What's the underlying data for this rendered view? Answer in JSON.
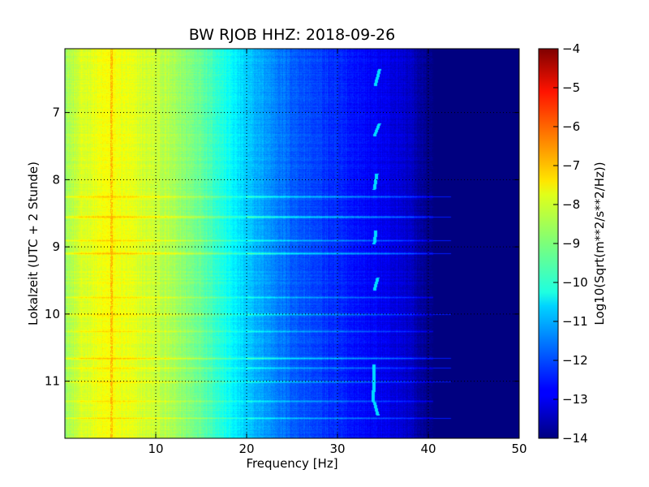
{
  "chart_data": {
    "type": "heatmap",
    "title": "BW RJOB HHZ: 2018-09-26",
    "xlabel": "Frequency [Hz]",
    "ylabel": "Lokalzeit (UTC + 2 Stunde)",
    "xlim": [
      0,
      50
    ],
    "ylim": [
      11.85,
      6.05
    ],
    "x_ticks": [
      "10",
      "20",
      "30",
      "40",
      "50"
    ],
    "x_tick_values": [
      10,
      20,
      30,
      40,
      50
    ],
    "y_ticks": [
      "7",
      "8",
      "9",
      "10",
      "11"
    ],
    "y_tick_values": [
      7,
      8,
      9,
      10,
      11
    ],
    "grid": true,
    "colormap": "jet",
    "colorbar": {
      "label": "Log10(Sqrt(m**2/s**2/Hz))",
      "range": [
        -14,
        -4
      ],
      "ticks": [
        "−4",
        "−5",
        "−6",
        "−7",
        "−8",
        "−9",
        "−10",
        "−11",
        "−12",
        "−13",
        "−14"
      ],
      "tick_values": [
        -4,
        -5,
        -6,
        -7,
        -8,
        -9,
        -10,
        -11,
        -12,
        -13,
        -14
      ]
    },
    "spectral_profile": {
      "frequency_hz": [
        0,
        2,
        5,
        10,
        15,
        20,
        25,
        30,
        35,
        38,
        40,
        42,
        50
      ],
      "level": [
        -8.7,
        -8.1,
        -7.8,
        -8.3,
        -9.2,
        -10.8,
        -11.8,
        -12.4,
        -12.9,
        -13.3,
        -14,
        -14,
        -14
      ]
    },
    "features": {
      "line_5hz": {
        "frequency_hz": 5.1,
        "level": -7.0
      },
      "line_34hz_segments": [
        {
          "t_start": 6.35,
          "t_end": 6.6,
          "f_start": 34.6,
          "f_end": 34.1
        },
        {
          "t_start": 7.15,
          "t_end": 7.35,
          "f_start": 34.6,
          "f_end": 34.0
        },
        {
          "t_start": 7.9,
          "t_end": 8.15,
          "f_start": 34.3,
          "f_end": 34.0
        },
        {
          "t_start": 8.75,
          "t_end": 8.95,
          "f_start": 34.2,
          "f_end": 34.0
        },
        {
          "t_start": 9.45,
          "t_end": 9.65,
          "f_start": 34.4,
          "f_end": 34.0
        },
        {
          "t_start": 10.75,
          "t_end": 11.3,
          "f_start": 34.0,
          "f_end": 33.9
        },
        {
          "t_start": 11.3,
          "t_end": 11.5,
          "f_start": 34.0,
          "f_end": 34.4
        }
      ],
      "horizontal_bands": [
        {
          "time": 8.25,
          "strength": 1.3
        },
        {
          "time": 8.55,
          "strength": 1.6
        },
        {
          "time": 8.9,
          "strength": 1.0
        },
        {
          "time": 9.1,
          "strength": 1.5
        },
        {
          "time": 9.75,
          "strength": 0.8
        },
        {
          "time": 10.0,
          "strength": 1.2
        },
        {
          "time": 10.25,
          "strength": 0.9
        },
        {
          "time": 10.65,
          "strength": 1.4
        },
        {
          "time": 10.8,
          "strength": 1.0
        },
        {
          "time": 11.0,
          "strength": 1.1
        },
        {
          "time": 11.3,
          "strength": 0.9
        },
        {
          "time": 11.55,
          "strength": 1.0
        }
      ]
    }
  }
}
